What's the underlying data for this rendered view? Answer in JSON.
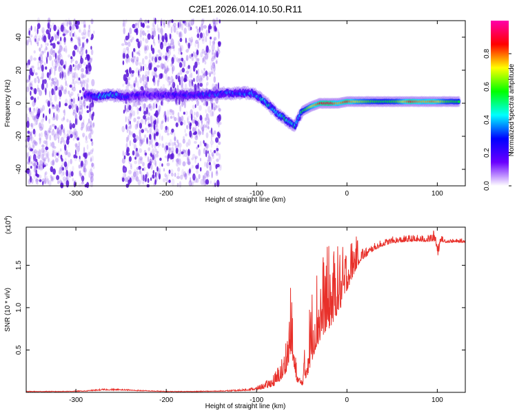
{
  "figure_title": "C2E1.2026.014.10.50.R11",
  "chart_data": [
    {
      "type": "heatmap",
      "id": "spectrogram",
      "xlabel": "Height of straight line (km)",
      "ylabel": "Frequency (Hz)",
      "xlim": [
        -355,
        131
      ],
      "ylim": [
        -50,
        50
      ],
      "xticks": [
        -300,
        -200,
        -100,
        0,
        100
      ],
      "yticks": [
        -40,
        -20,
        0,
        20,
        40
      ],
      "grid": false,
      "colormap": [
        "#ffffff",
        "#6a00ff",
        "#0000ff",
        "#00ffff",
        "#00ff00",
        "#ffff00",
        "#ff0000",
        "#ff00aa"
      ],
      "colorbar": {
        "label": "Normalized spectral amplitude",
        "range": [
          0,
          1
        ],
        "ticks": [
          0.0,
          0.2,
          0.4,
          0.6,
          0.8
        ]
      },
      "noise_regions": [
        {
          "x_range": [
            -355,
            -280
          ],
          "intensity": 0.25
        },
        {
          "x_range": [
            -248,
            -140
          ],
          "intensity": 0.22
        }
      ],
      "signal_trace": [
        {
          "x": -290,
          "freq": 5,
          "amp": 0.2
        },
        {
          "x": -275,
          "freq": 4,
          "amp": 0.35
        },
        {
          "x": -260,
          "freq": 5,
          "amp": 0.4
        },
        {
          "x": -245,
          "freq": 4,
          "amp": 0.25
        },
        {
          "x": -225,
          "freq": 5,
          "amp": 0.2
        },
        {
          "x": -205,
          "freq": 5,
          "amp": 0.22
        },
        {
          "x": -180,
          "freq": 5,
          "amp": 0.25
        },
        {
          "x": -160,
          "freq": 5,
          "amp": 0.28
        },
        {
          "x": -140,
          "freq": 6,
          "amp": 0.3
        },
        {
          "x": -120,
          "freq": 6,
          "amp": 0.32
        },
        {
          "x": -105,
          "freq": 6,
          "amp": 0.35
        },
        {
          "x": -95,
          "freq": 3,
          "amp": 0.38
        },
        {
          "x": -85,
          "freq": -2,
          "amp": 0.4
        },
        {
          "x": -75,
          "freq": -7,
          "amp": 0.42
        },
        {
          "x": -65,
          "freq": -11,
          "amp": 0.45
        },
        {
          "x": -58,
          "freq": -14,
          "amp": 0.42
        },
        {
          "x": -50,
          "freq": -5,
          "amp": 0.5
        },
        {
          "x": -40,
          "freq": -2,
          "amp": 0.7
        },
        {
          "x": -30,
          "freq": 0,
          "amp": 0.85
        },
        {
          "x": -20,
          "freq": 0,
          "amp": 0.9
        },
        {
          "x": -10,
          "freq": 0,
          "amp": 0.75
        },
        {
          "x": 0,
          "freq": 1,
          "amp": 0.85
        },
        {
          "x": 10,
          "freq": 1,
          "amp": 0.7
        },
        {
          "x": 25,
          "freq": 1,
          "amp": 0.6
        },
        {
          "x": 40,
          "freq": 1,
          "amp": 0.55
        },
        {
          "x": 55,
          "freq": 1,
          "amp": 0.6
        },
        {
          "x": 70,
          "freq": 1,
          "amp": 0.85
        },
        {
          "x": 85,
          "freq": 1,
          "amp": 0.75
        },
        {
          "x": 95,
          "freq": 1,
          "amp": 0.8
        },
        {
          "x": 110,
          "freq": 1,
          "amp": 0.6
        },
        {
          "x": 125,
          "freq": 1,
          "amp": 0.55
        }
      ]
    },
    {
      "type": "line",
      "id": "snr",
      "xlabel": "Height of straight line (km)",
      "ylabel": "SNR (10 * v/v)",
      "scale_label": "(x10",
      "scale_exponent": "4",
      "scale_suffix": ")",
      "xlim": [
        -355,
        131
      ],
      "ylim": [
        0,
        1.95
      ],
      "xticks": [
        -300,
        -200,
        -100,
        0,
        100
      ],
      "yticks": [
        0.5,
        1.0,
        1.5
      ],
      "ytick_labels": [
        "0.5",
        "1.0",
        "1.5"
      ],
      "grid": false,
      "color": "#e8302a",
      "series": [
        {
          "name": "SNR",
          "x": [
            -355,
            -320,
            -290,
            -270,
            -250,
            -230,
            -200,
            -170,
            -140,
            -120,
            -100,
            -90,
            -80,
            -70,
            -65,
            -62,
            -58,
            -55,
            -50,
            -45,
            -40,
            -35,
            -30,
            -25,
            -20,
            -15,
            -10,
            -5,
            0,
            5,
            10,
            15,
            20,
            30,
            40,
            50,
            60,
            70,
            80,
            90,
            98,
            101,
            103,
            110,
            120,
            131
          ],
          "y": [
            0.01,
            0.01,
            0.015,
            0.03,
            0.03,
            0.02,
            0.01,
            0.01,
            0.015,
            0.02,
            0.04,
            0.07,
            0.12,
            0.25,
            0.45,
            0.7,
            0.3,
            0.15,
            0.1,
            0.3,
            0.55,
            0.75,
            0.85,
            0.95,
            1.0,
            1.05,
            1.15,
            1.2,
            1.35,
            1.45,
            1.55,
            1.6,
            1.62,
            1.7,
            1.75,
            1.78,
            1.79,
            1.8,
            1.8,
            1.8,
            1.82,
            1.65,
            1.8,
            1.78,
            1.78,
            1.78
          ],
          "noise_amplitude": [
            0.003,
            0.003,
            0.004,
            0.008,
            0.008,
            0.005,
            0.003,
            0.003,
            0.004,
            0.008,
            0.02,
            0.04,
            0.08,
            0.15,
            0.3,
            0.4,
            0.2,
            0.06,
            0.05,
            0.3,
            0.45,
            0.5,
            0.5,
            0.5,
            0.5,
            0.45,
            0.4,
            0.35,
            0.3,
            0.25,
            0.2,
            0.1,
            0.06,
            0.04,
            0.04,
            0.04,
            0.04,
            0.04,
            0.04,
            0.04,
            0.08,
            0.12,
            0.04,
            0.025,
            0.02,
            0.02
          ]
        }
      ]
    }
  ]
}
